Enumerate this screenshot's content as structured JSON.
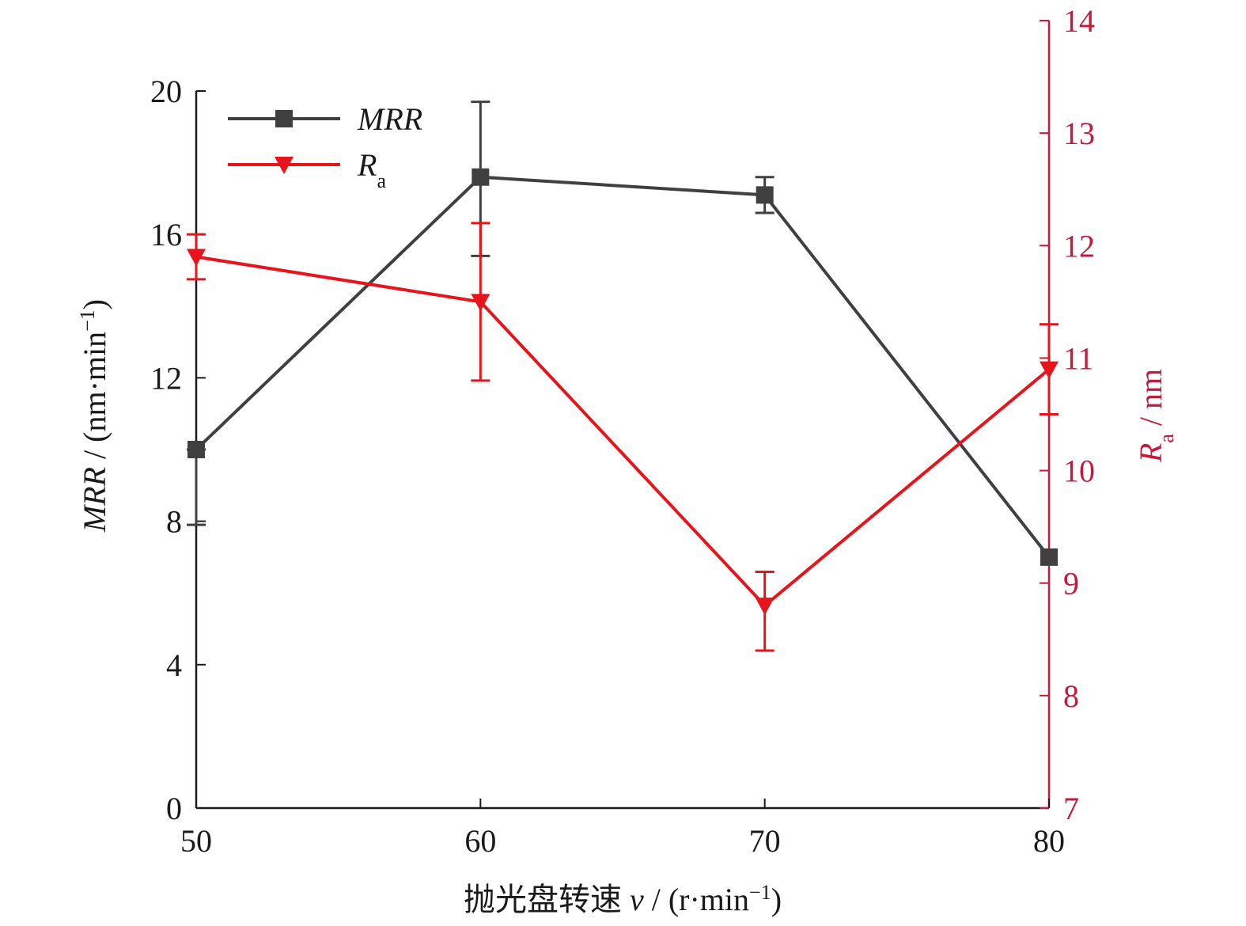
{
  "chart_data": {
    "type": "line",
    "x": [
      50,
      60,
      70,
      80
    ],
    "xlabel": {
      "prefix": "抛光盘转速 ",
      "var": "v",
      "unit": " / (r·min",
      "sup": "−1",
      "close": ")"
    },
    "xticks": [
      "50",
      "60",
      "70",
      "80"
    ],
    "xlim": [
      50,
      80
    ],
    "ylabel_left": {
      "var": "MRR",
      "unit": " / (nm·min",
      "sup": "−1",
      "close": ")"
    },
    "yticks_left": [
      "0",
      "4",
      "8",
      "12",
      "16",
      "20"
    ],
    "ylim_left": [
      0,
      20
    ],
    "ylabel_right": {
      "var": "R",
      "sub": "a",
      "unit": " / nm"
    },
    "yticks_right": [
      "7",
      "8",
      "9",
      "10",
      "11",
      "12",
      "13",
      "14"
    ],
    "ylim_right": [
      7,
      14
    ],
    "series": [
      {
        "name": "MRR",
        "axis": "left",
        "marker": "square",
        "color": "#404040",
        "values": [
          10.0,
          17.6,
          17.1,
          7.0
        ],
        "error_low": [
          7.9,
          15.4,
          16.6,
          7.0
        ],
        "error_high": [
          10.0,
          19.7,
          17.6,
          7.0
        ]
      },
      {
        "name": "R",
        "name_sub": "a",
        "axis": "right",
        "marker": "triangle-down",
        "color": "#e8141c",
        "values": [
          11.9,
          11.5,
          8.8,
          10.9
        ],
        "error_low": [
          11.7,
          10.8,
          8.4,
          10.5
        ],
        "error_high": [
          12.1,
          12.2,
          9.1,
          11.3
        ]
      }
    ],
    "legend": {
      "position": "top-left"
    },
    "colors": {
      "axis": "#1a1a1a",
      "right_axis": "#c41a3b"
    },
    "grid": false
  }
}
